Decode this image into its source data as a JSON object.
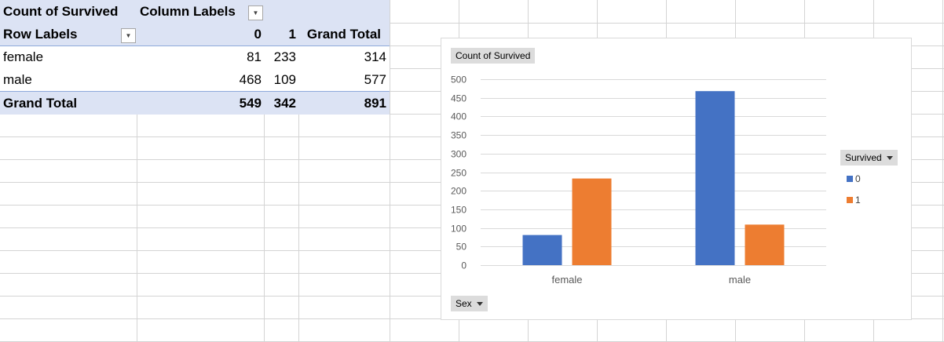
{
  "pivot": {
    "value_field_label": "Count of Survived",
    "column_labels_label": "Column Labels",
    "row_labels_label": "Row Labels",
    "col_headers": [
      "0",
      "1",
      "Grand Total"
    ],
    "rows": [
      {
        "label": "female",
        "v0": "81",
        "v1": "233",
        "total": "314"
      },
      {
        "label": "male",
        "v0": "468",
        "v1": "109",
        "total": "577"
      }
    ],
    "grand_total": {
      "label": "Grand Total",
      "v0": "549",
      "v1": "342",
      "total": "891"
    },
    "dropdown_icon": "dropdown-arrow-icon"
  },
  "chart_buttons": {
    "value_field": "Count of Survived",
    "legend_field": "Survived",
    "axis_field": "Sex"
  },
  "chart_data": {
    "type": "bar",
    "title": "",
    "categories": [
      "female",
      "male"
    ],
    "series": [
      {
        "name": "0",
        "values": [
          81,
          468
        ],
        "color": "#4472c4"
      },
      {
        "name": "1",
        "values": [
          233,
          109
        ],
        "color": "#ed7d31"
      }
    ],
    "ylim": [
      0,
      500
    ],
    "yticks": [
      0,
      50,
      100,
      150,
      200,
      250,
      300,
      350,
      400,
      450,
      500
    ],
    "grid": true,
    "legend_position": "right"
  }
}
